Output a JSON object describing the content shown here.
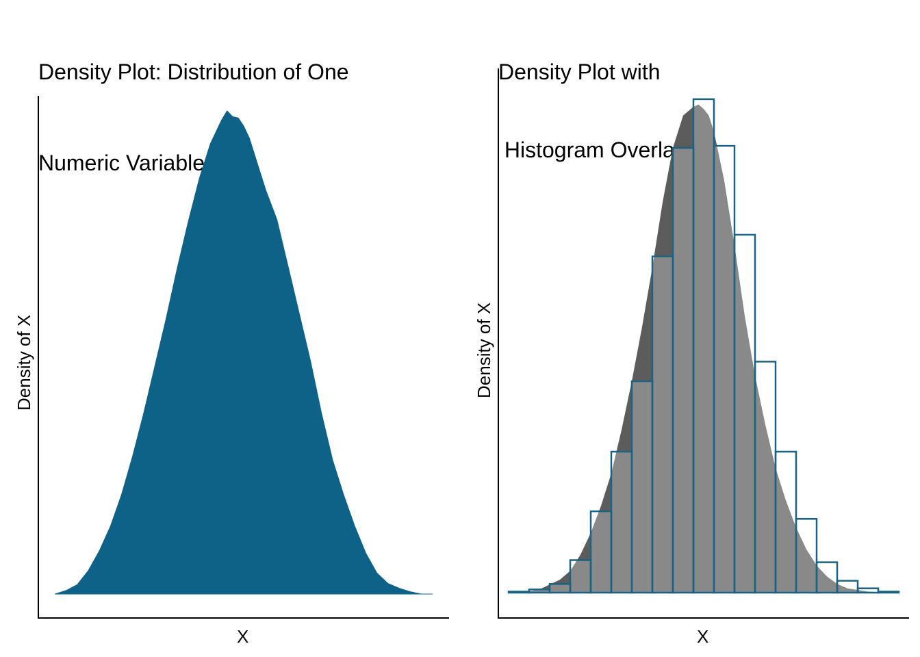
{
  "chart_data": [
    {
      "type": "area",
      "title_lines": [
        "Density Plot: Distribution of One",
        "Numeric Variable"
      ],
      "xlabel": "X",
      "ylabel": "Density of X",
      "xlim": [
        -3.7,
        3.7
      ],
      "ylim": [
        0,
        0.42
      ],
      "fill": "#0e6288",
      "grid": false,
      "series": [
        {
          "x": [
            -3.4,
            -3.2,
            -3.0,
            -2.8,
            -2.6,
            -2.4,
            -2.2,
            -2.0,
            -1.8,
            -1.6,
            -1.4,
            -1.2,
            -1.0,
            -0.8,
            -0.6,
            -0.4,
            -0.3,
            -0.2,
            -0.1,
            0.0,
            0.1,
            0.2,
            0.3,
            0.4,
            0.6,
            0.8,
            1.0,
            1.2,
            1.4,
            1.6,
            1.8,
            2.0,
            2.2,
            2.4,
            2.6,
            2.8,
            3.0,
            3.2,
            3.4
          ],
          "y": [
            0.0,
            0.003,
            0.008,
            0.02,
            0.037,
            0.058,
            0.085,
            0.118,
            0.155,
            0.195,
            0.235,
            0.278,
            0.318,
            0.355,
            0.385,
            0.405,
            0.413,
            0.408,
            0.407,
            0.4,
            0.39,
            0.375,
            0.36,
            0.345,
            0.32,
            0.28,
            0.24,
            0.2,
            0.155,
            0.115,
            0.085,
            0.058,
            0.035,
            0.018,
            0.009,
            0.005,
            0.002,
            0.0,
            0.0
          ]
        }
      ]
    },
    {
      "type": "bar",
      "title_lines": [
        "Density Plot with",
        " Histogram Overlay"
      ],
      "xlabel": "X",
      "ylabel": "Density of X",
      "xlim": [
        -4.0,
        4.0
      ],
      "ylim": [
        0,
        0.46
      ],
      "bar_stroke": "#1b6384",
      "density_fill": "#999999",
      "grid": false,
      "histogram": {
        "bin_edges": [
          -3.8,
          -3.4,
          -3.0,
          -2.6,
          -2.2,
          -1.8,
          -1.4,
          -1.0,
          -0.6,
          -0.2,
          0.2,
          0.6,
          1.0,
          1.4,
          1.8,
          2.2,
          2.6,
          3.0,
          3.4,
          3.8
        ],
        "values": [
          0.001,
          0.003,
          0.008,
          0.03,
          0.075,
          0.13,
          0.195,
          0.31,
          0.41,
          0.455,
          0.412,
          0.33,
          0.213,
          0.13,
          0.068,
          0.028,
          0.011,
          0.004,
          0.001
        ]
      },
      "density": {
        "x": [
          -3.6,
          -3.2,
          -2.8,
          -2.6,
          -2.4,
          -2.2,
          -2.0,
          -1.8,
          -1.6,
          -1.4,
          -1.2,
          -1.0,
          -0.8,
          -0.6,
          -0.4,
          -0.2,
          -0.1,
          0.0,
          0.1,
          0.2,
          0.4,
          0.6,
          0.8,
          1.0,
          1.2,
          1.4,
          1.6,
          1.8,
          2.0,
          2.2,
          2.4,
          2.6,
          2.8,
          3.2,
          3.6
        ],
        "y": [
          0.0,
          0.003,
          0.012,
          0.02,
          0.035,
          0.055,
          0.08,
          0.11,
          0.15,
          0.195,
          0.245,
          0.3,
          0.36,
          0.41,
          0.44,
          0.448,
          0.45,
          0.446,
          0.44,
          0.425,
          0.38,
          0.32,
          0.255,
          0.2,
          0.155,
          0.115,
          0.085,
          0.06,
          0.04,
          0.025,
          0.015,
          0.008,
          0.004,
          0.001,
          0.0
        ]
      }
    }
  ]
}
